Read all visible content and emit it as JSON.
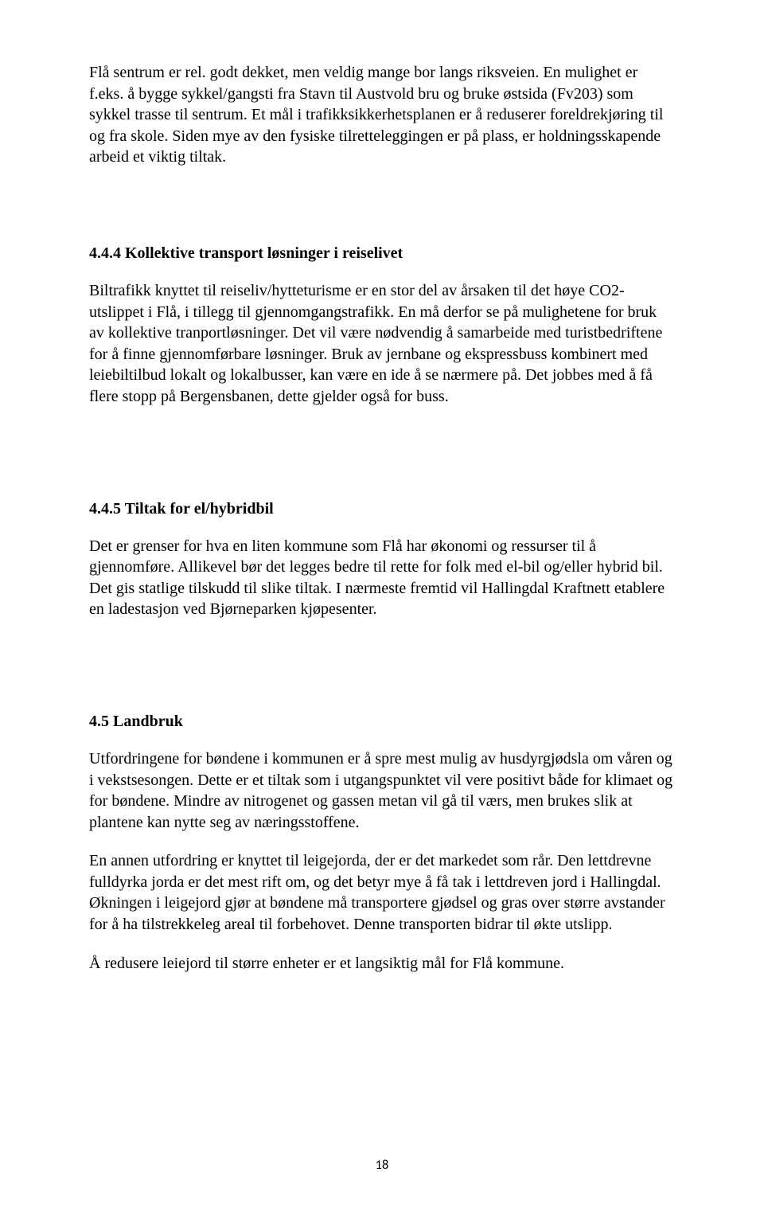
{
  "page": {
    "intro_para": "Flå sentrum er rel. godt dekket, men veldig mange bor langs riksveien. En mulighet er f.eks. å bygge sykkel/gangsti fra Stavn til Austvold bru og bruke østsida (Fv203) som sykkel trasse til sentrum. Et mål i trafikksikkerhetsplanen er å reduserer foreldrekjøring til og fra skole. Siden mye av den fysiske tilretteleggingen er på plass, er holdningsskapende arbeid et viktig tiltak.",
    "s444": {
      "heading": "4.4.4 Kollektive transport løsninger i reiselivet",
      "body": "Biltrafikk knyttet til reiseliv/hytteturisme er en stor del av årsaken til det høye CO2-utslippet i Flå, i tillegg til gjennomgangstrafikk. En må derfor se på mulighetene for bruk av kollektive tranportløsninger. Det vil være nødvendig å samarbeide med turistbedriftene for å finne gjennomførbare løsninger. Bruk av jernbane og ekspressbuss kombinert med leiebiltilbud lokalt og lokalbusser, kan være en ide å se nærmere på. Det jobbes med å få flere stopp på Bergensbanen, dette gjelder også for buss."
    },
    "s445": {
      "heading": "4.4.5 Tiltak for el/hybridbil",
      "body": "Det er grenser for hva en liten kommune som Flå har økonomi og ressurser til å gjennomføre. Allikevel bør det legges bedre til rette for folk med el-bil og/eller hybrid bil. Det gis statlige tilskudd til slike tiltak. I nærmeste fremtid vil Hallingdal Kraftnett etablere en ladestasjon ved Bjørneparken kjøpesenter."
    },
    "s45": {
      "heading": "4.5  Landbruk",
      "p1": "Utfordringene for bøndene i kommunen er å spre mest mulig av husdyrgjødsla om våren og i vekstsesongen. Dette er et tiltak som i utgangspunktet vil vere positivt både for klimaet og for bøndene. Mindre av nitrogenet og gassen metan vil gå til værs, men brukes slik at plantene kan nytte seg av næringsstoffene.",
      "p2": "En annen utfordring er knyttet til leigejorda, der er det markedet som rår. Den lettdrevne fulldyrka jorda er det mest rift om, og det betyr mye å få tak i lettdreven jord i Hallingdal. Økningen i leigejord gjør at bøndene må transportere gjødsel og gras over større avstander for å ha tilstrekkeleg areal til forbehovet. Denne transporten bidrar til økte utslipp.",
      "p3": "Å redusere leiejord til større enheter er et langsiktig mål for Flå kommune."
    },
    "page_number": "18"
  }
}
